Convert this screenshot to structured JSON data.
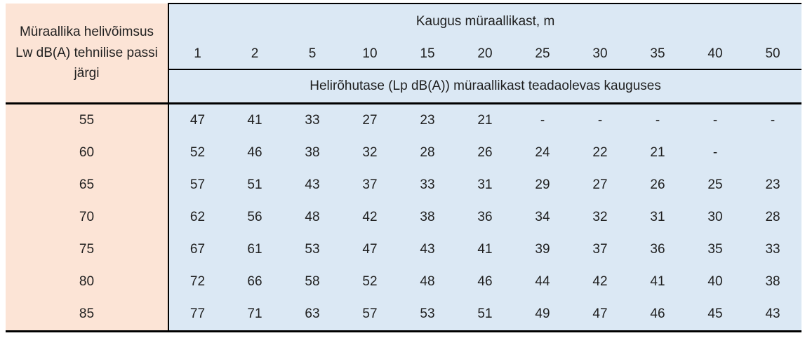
{
  "colors": {
    "peach_fill": "#FCE4D6",
    "blue_fill": "#DBE8F4",
    "text": "#1F1F1F",
    "border": "#000000"
  },
  "chart_data": {
    "type": "table",
    "row_header_title": "Müraallika helivõimsus Lw dB(A) tehnilise passi järgi",
    "column_group_title": "Kaugus müraallikast, m",
    "columns": [
      "1",
      "2",
      "5",
      "10",
      "15",
      "20",
      "25",
      "30",
      "35",
      "40",
      "50"
    ],
    "subheader": "Helirõhutase (Lp dB(A)) müraallikast teadaolevas kauguses",
    "rows": [
      {
        "lw": "55",
        "values": [
          "47",
          "41",
          "33",
          "27",
          "23",
          "21",
          "-",
          "-",
          "-",
          "-",
          "-"
        ]
      },
      {
        "lw": "60",
        "values": [
          "52",
          "46",
          "38",
          "32",
          "28",
          "26",
          "24",
          "22",
          "21",
          "-",
          ""
        ]
      },
      {
        "lw": "65",
        "values": [
          "57",
          "51",
          "43",
          "37",
          "33",
          "31",
          "29",
          "27",
          "26",
          "25",
          "23"
        ]
      },
      {
        "lw": "70",
        "values": [
          "62",
          "56",
          "48",
          "42",
          "38",
          "36",
          "34",
          "32",
          "31",
          "30",
          "28"
        ]
      },
      {
        "lw": "75",
        "values": [
          "67",
          "61",
          "53",
          "47",
          "43",
          "41",
          "39",
          "37",
          "36",
          "35",
          "33"
        ]
      },
      {
        "lw": "80",
        "values": [
          "72",
          "66",
          "58",
          "52",
          "48",
          "46",
          "44",
          "42",
          "41",
          "40",
          "38"
        ]
      },
      {
        "lw": "85",
        "values": [
          "77",
          "71",
          "63",
          "57",
          "53",
          "51",
          "49",
          "47",
          "46",
          "45",
          "43"
        ]
      }
    ]
  }
}
